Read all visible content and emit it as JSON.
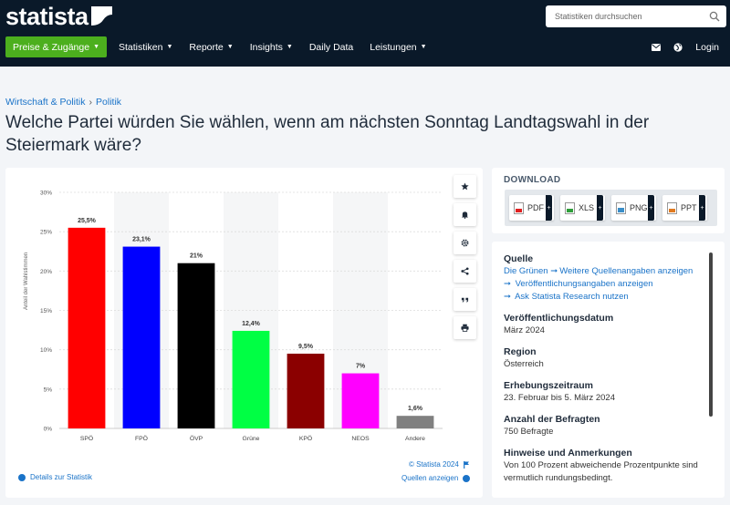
{
  "header": {
    "logo_text": "statista",
    "search_placeholder": "Statistiken durchsuchen",
    "nav": {
      "primary": "Preise & Zugänge",
      "items": [
        "Statistiken",
        "Reporte",
        "Insights",
        "Daily Data",
        "Leistungen"
      ],
      "login": "Login"
    }
  },
  "breadcrumb": [
    "Wirtschaft & Politik",
    "Politik"
  ],
  "page_title": "Welche Partei würden Sie wählen, wenn am nächsten Sonntag Landtagswahl in der Steiermark wäre?",
  "chart_data": {
    "type": "bar",
    "categories": [
      "SPÖ",
      "FPÖ",
      "ÖVP",
      "Grüne",
      "KPÖ",
      "NEOS",
      "Andere"
    ],
    "values": [
      25.5,
      23.1,
      21,
      12.4,
      9.5,
      7,
      1.6
    ],
    "value_labels": [
      "25,5%",
      "23,1%",
      "21%",
      "12,4%",
      "9,5%",
      "7%",
      "1,6%"
    ],
    "colors": [
      "#ff0000",
      "#0000ff",
      "#000000",
      "#00ff44",
      "#8b0000",
      "#ff00ff",
      "#808080"
    ],
    "ylabel": "Anteil der Wahlstimmen",
    "ylim": [
      0,
      30
    ],
    "yticks": [
      "0%",
      "5%",
      "10%",
      "15%",
      "20%",
      "25%",
      "30%"
    ],
    "grid": true,
    "alt_band_columns": true
  },
  "chart_footer": {
    "details_link": "Details zur Statistik",
    "copyright": "© Statista 2024",
    "sources_link": "Quellen anzeigen"
  },
  "toolbar_icons": [
    "star-icon",
    "bell-icon",
    "gear-icon",
    "share-icon",
    "quote-icon",
    "print-icon"
  ],
  "download": {
    "title": "DOWNLOAD",
    "formats": [
      "PDF",
      "XLS",
      "PNG",
      "PPT"
    ]
  },
  "info": {
    "quelle_title": "Quelle",
    "quelle_source": "Die Grünen",
    "links": [
      "Weitere Quellenangaben anzeigen",
      "Veröffentlichungsangaben anzeigen",
      "Ask Statista Research nutzen"
    ],
    "pub_date_title": "Veröffentlichungsdatum",
    "pub_date": "März 2024",
    "region_title": "Region",
    "region": "Österreich",
    "period_title": "Erhebungszeitraum",
    "period": "23. Februar bis 5. März 2024",
    "respondents_title": "Anzahl der Befragten",
    "respondents": "750 Befragte",
    "notes_title": "Hinweise und Anmerkungen",
    "notes": "Von 100 Prozent abweichende Prozentpunkte sind vermutlich rundungsbedingt."
  }
}
